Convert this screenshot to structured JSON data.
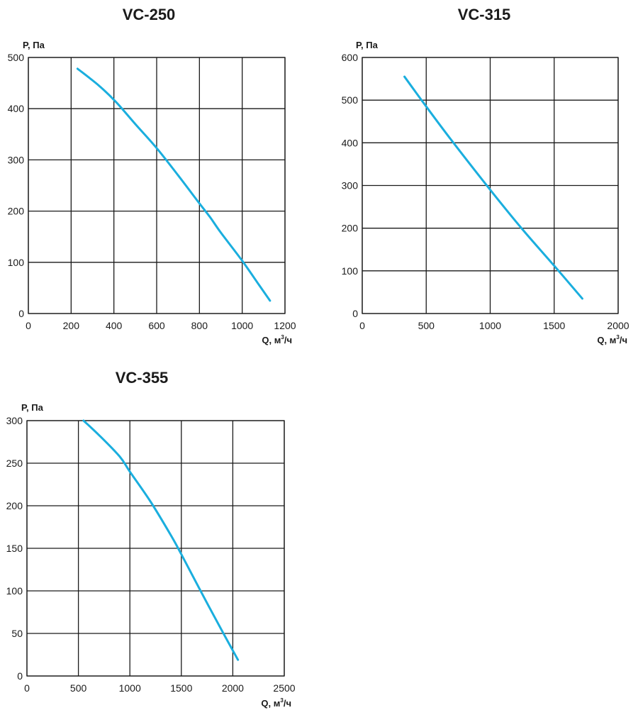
{
  "chart_data": [
    {
      "type": "line",
      "title": "VC-250",
      "ylabel": "P, Па",
      "xlabel": {
        "prefix": "Q, м",
        "sup": "3",
        "suffix": "/ч"
      },
      "xlim": [
        0,
        1200
      ],
      "ylim": [
        0,
        500
      ],
      "xticks": [
        0,
        200,
        400,
        600,
        800,
        1000,
        1200
      ],
      "yticks": [
        0,
        100,
        200,
        300,
        400,
        500
      ],
      "grid": true,
      "color": "#1aaede",
      "series": [
        {
          "x": [
            230,
            330,
            410,
            500,
            600,
            700,
            800,
            850,
            900,
            1000,
            1080,
            1130
          ],
          "y": [
            478,
            445,
            413,
            370,
            323,
            270,
            215,
            188,
            158,
            103,
            55,
            25
          ]
        }
      ]
    },
    {
      "type": "line",
      "title": "VC-315",
      "ylabel": "P, Па",
      "xlabel": {
        "prefix": "Q, м",
        "sup": "3",
        "suffix": "/ч"
      },
      "xlim": [
        0,
        2000
      ],
      "ylim": [
        0,
        600
      ],
      "xticks": [
        0,
        500,
        1000,
        1500,
        2000
      ],
      "yticks": [
        0,
        100,
        200,
        300,
        400,
        500,
        600
      ],
      "grid": true,
      "color": "#1aaede",
      "series": [
        {
          "x": [
            330,
            500,
            700,
            1000,
            1250,
            1500,
            1720
          ],
          "y": [
            555,
            485,
            405,
            290,
            198,
            112,
            35
          ]
        }
      ]
    },
    {
      "type": "line",
      "title": "VC-355",
      "ylabel": "P, Па",
      "xlabel": {
        "prefix": "Q, м",
        "sup": "3",
        "suffix": "/ч"
      },
      "xlim": [
        0,
        2500
      ],
      "ylim": [
        0,
        300
      ],
      "xticks": [
        0,
        500,
        1000,
        1500,
        2000,
        2500
      ],
      "yticks": [
        0,
        50,
        100,
        150,
        200,
        250,
        300
      ],
      "grid": true,
      "color": "#1aaede",
      "series": [
        {
          "x": [
            550,
            700,
            900,
            1000,
            1200,
            1400,
            1500,
            1700,
            1900,
            2050
          ],
          "y": [
            300,
            283,
            258,
            240,
            205,
            165,
            143,
            97,
            52,
            19
          ]
        }
      ]
    }
  ]
}
